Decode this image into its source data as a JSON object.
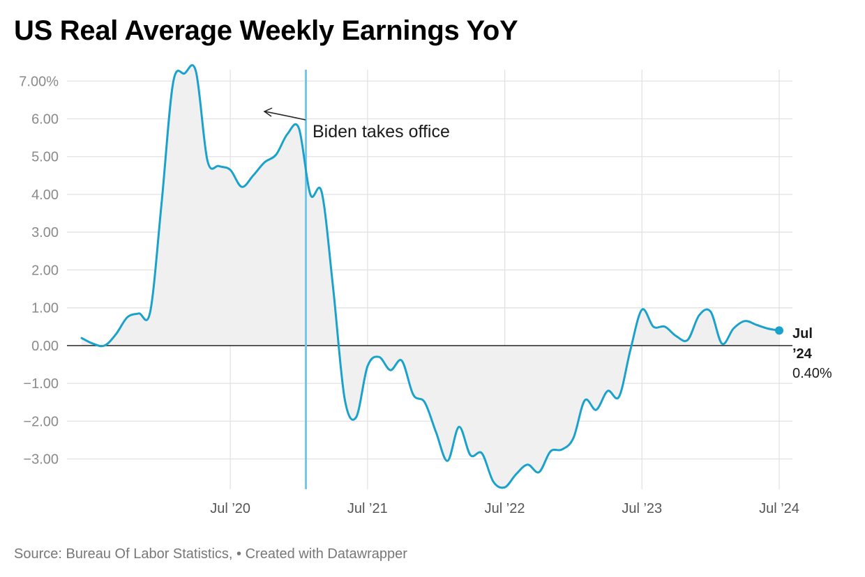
{
  "chart_data": {
    "type": "area",
    "title": "US Real Average Weekly Earnings YoY",
    "subtitle": "",
    "xlabel": "",
    "ylabel": "",
    "source": "Source: Bureau Of Labor Statistics, • Created with Datawrapper",
    "y_range": [
      -3.8,
      7.3
    ],
    "y_ticks": [
      {
        "value": 7,
        "label": "7.00%"
      },
      {
        "value": 6,
        "label": "6.00"
      },
      {
        "value": 5,
        "label": "5.00"
      },
      {
        "value": 4,
        "label": "4.00"
      },
      {
        "value": 3,
        "label": "3.00"
      },
      {
        "value": 2,
        "label": "2.00"
      },
      {
        "value": 1,
        "label": "1.00"
      },
      {
        "value": 0,
        "label": "0.00"
      },
      {
        "value": -1,
        "label": "−1.00"
      },
      {
        "value": -2,
        "label": "−2.00"
      },
      {
        "value": -3,
        "label": "−3.00"
      }
    ],
    "x_ticks": [
      {
        "date": "2020-07",
        "label": "Jul ’20"
      },
      {
        "date": "2021-07",
        "label": "Jul ’21"
      },
      {
        "date": "2022-07",
        "label": "Jul ’22"
      },
      {
        "date": "2023-07",
        "label": "Jul ’23"
      },
      {
        "date": "2024-07",
        "label": "Jul ’24"
      }
    ],
    "x_range": [
      "2019-06",
      "2024-07"
    ],
    "grid": true,
    "line_color": "#1aa1cc",
    "fill_color": "#f0f0f0",
    "series": [
      {
        "name": "",
        "points": [
          {
            "x": "2019-06",
            "y": 0.2
          },
          {
            "x": "2019-07",
            "y": 0.05
          },
          {
            "x": "2019-08",
            "y": 0.0
          },
          {
            "x": "2019-09",
            "y": 0.3
          },
          {
            "x": "2019-10",
            "y": 0.75
          },
          {
            "x": "2019-11",
            "y": 0.85
          },
          {
            "x": "2019-12",
            "y": 0.9
          },
          {
            "x": "2020-01",
            "y": 3.8
          },
          {
            "x": "2020-02",
            "y": 6.95
          },
          {
            "x": "2020-03",
            "y": 7.2
          },
          {
            "x": "2020-04",
            "y": 7.25
          },
          {
            "x": "2020-05",
            "y": 4.9
          },
          {
            "x": "2020-06",
            "y": 4.75
          },
          {
            "x": "2020-07",
            "y": 4.65
          },
          {
            "x": "2020-08",
            "y": 4.2
          },
          {
            "x": "2020-09",
            "y": 4.5
          },
          {
            "x": "2020-10",
            "y": 4.85
          },
          {
            "x": "2020-11",
            "y": 5.05
          },
          {
            "x": "2020-12",
            "y": 5.6
          },
          {
            "x": "2021-01",
            "y": 5.75
          },
          {
            "x": "2021-02",
            "y": 4.0
          },
          {
            "x": "2021-03",
            "y": 4.05
          },
          {
            "x": "2021-04",
            "y": 1.5
          },
          {
            "x": "2021-05",
            "y": -1.4
          },
          {
            "x": "2021-06",
            "y": -1.9
          },
          {
            "x": "2021-07",
            "y": -0.55
          },
          {
            "x": "2021-08",
            "y": -0.3
          },
          {
            "x": "2021-09",
            "y": -0.65
          },
          {
            "x": "2021-10",
            "y": -0.4
          },
          {
            "x": "2021-11",
            "y": -1.3
          },
          {
            "x": "2021-12",
            "y": -1.5
          },
          {
            "x": "2022-01",
            "y": -2.3
          },
          {
            "x": "2022-02",
            "y": -3.05
          },
          {
            "x": "2022-03",
            "y": -2.15
          },
          {
            "x": "2022-04",
            "y": -2.9
          },
          {
            "x": "2022-05",
            "y": -2.85
          },
          {
            "x": "2022-06",
            "y": -3.6
          },
          {
            "x": "2022-07",
            "y": -3.75
          },
          {
            "x": "2022-08",
            "y": -3.4
          },
          {
            "x": "2022-09",
            "y": -3.15
          },
          {
            "x": "2022-10",
            "y": -3.35
          },
          {
            "x": "2022-11",
            "y": -2.8
          },
          {
            "x": "2022-12",
            "y": -2.75
          },
          {
            "x": "2023-01",
            "y": -2.45
          },
          {
            "x": "2023-02",
            "y": -1.45
          },
          {
            "x": "2023-03",
            "y": -1.7
          },
          {
            "x": "2023-04",
            "y": -1.2
          },
          {
            "x": "2023-05",
            "y": -1.35
          },
          {
            "x": "2023-06",
            "y": -0.1
          },
          {
            "x": "2023-07",
            "y": 0.95
          },
          {
            "x": "2023-08",
            "y": 0.5
          },
          {
            "x": "2023-09",
            "y": 0.5
          },
          {
            "x": "2023-10",
            "y": 0.25
          },
          {
            "x": "2023-11",
            "y": 0.15
          },
          {
            "x": "2023-12",
            "y": 0.8
          },
          {
            "x": "2024-01",
            "y": 0.9
          },
          {
            "x": "2024-02",
            "y": 0.05
          },
          {
            "x": "2024-03",
            "y": 0.45
          },
          {
            "x": "2024-04",
            "y": 0.65
          },
          {
            "x": "2024-05",
            "y": 0.55
          },
          {
            "x": "2024-06",
            "y": 0.45
          },
          {
            "x": "2024-07",
            "y": 0.4
          }
        ]
      }
    ],
    "annotations": [
      {
        "text": "Biden takes office",
        "date": "2021-01-20",
        "type": "vertical-line",
        "color": "#74c7e8"
      }
    ],
    "end_label": {
      "line1": "Jul",
      "line2": "’24",
      "value": "0.40%"
    }
  }
}
